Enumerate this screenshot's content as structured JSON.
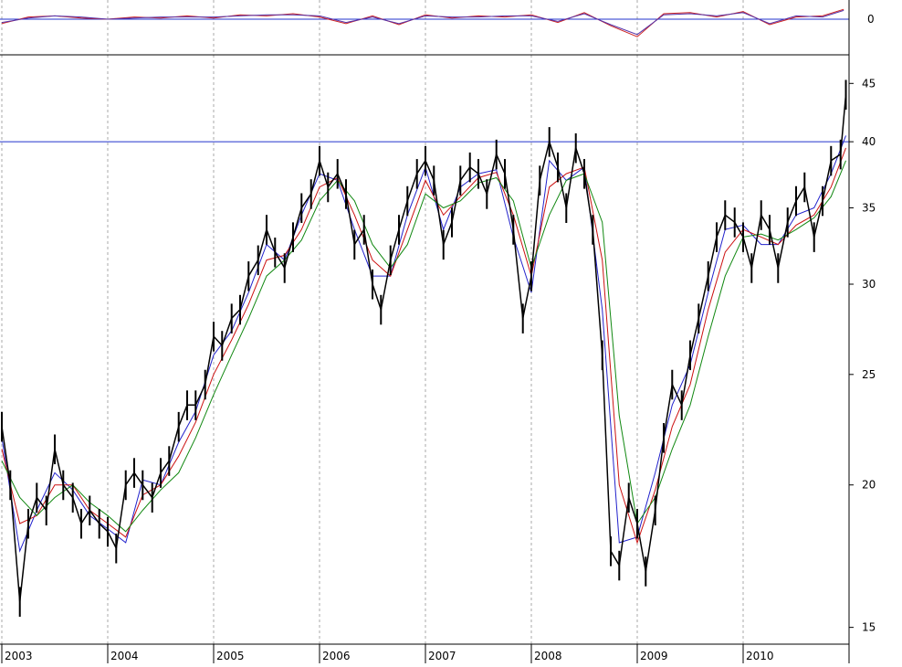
{
  "chart_data": [
    {
      "type": "line",
      "panel": "oscillator",
      "title": "",
      "ylabel": "",
      "y_ticks": [
        0
      ],
      "reference_line": 0,
      "series": [
        {
          "color": "#cc2222",
          "x": [
            2003.0,
            2003.25,
            2003.5,
            2003.75,
            2004.0,
            2004.25,
            2004.5,
            2004.75,
            2005.0,
            2005.25,
            2005.5,
            2005.75,
            2006.0,
            2006.25,
            2006.5,
            2006.75,
            2007.0,
            2007.25,
            2007.5,
            2007.75,
            2008.0,
            2008.25,
            2008.5,
            2008.75,
            2009.0,
            2009.25,
            2009.5,
            2009.75,
            2010.0,
            2010.25,
            2010.5,
            2010.75,
            2010.95
          ],
          "y": [
            -0.4,
            0.2,
            0.3,
            0.1,
            0.0,
            0.2,
            0.1,
            0.3,
            0.1,
            0.4,
            0.3,
            0.5,
            0.2,
            -0.4,
            0.3,
            -0.5,
            0.4,
            0.1,
            0.3,
            0.2,
            0.4,
            -0.3,
            0.6,
            -0.6,
            -1.6,
            0.5,
            0.6,
            0.2,
            0.7,
            -0.5,
            0.2,
            0.3,
            0.9
          ]
        },
        {
          "color": "#5533aa",
          "x": [
            2003.0,
            2003.25,
            2003.5,
            2003.75,
            2004.0,
            2004.25,
            2004.5,
            2004.75,
            2005.0,
            2005.25,
            2005.5,
            2005.75,
            2006.0,
            2006.25,
            2006.5,
            2006.75,
            2007.0,
            2007.25,
            2007.5,
            2007.75,
            2008.0,
            2008.25,
            2008.5,
            2008.75,
            2009.0,
            2009.25,
            2009.5,
            2009.75,
            2010.0,
            2010.25,
            2010.5,
            2010.75,
            2010.95
          ],
          "y": [
            -0.3,
            0.1,
            0.3,
            0.2,
            0.0,
            0.1,
            0.2,
            0.2,
            0.2,
            0.3,
            0.4,
            0.4,
            0.3,
            -0.3,
            0.2,
            -0.4,
            0.3,
            0.2,
            0.2,
            0.3,
            0.3,
            -0.2,
            0.5,
            -0.5,
            -1.4,
            0.4,
            0.5,
            0.3,
            0.6,
            -0.4,
            0.3,
            0.2,
            0.8
          ]
        }
      ]
    },
    {
      "type": "line",
      "panel": "price",
      "title": "",
      "xlabel": "",
      "ylabel": "",
      "x_tick_labels": [
        "2003",
        "2004",
        "2005",
        "2006",
        "2007",
        "2008",
        "2009",
        "2010"
      ],
      "y_tick_labels": [
        "15",
        "20",
        "25",
        "30",
        "35",
        "40",
        "45"
      ],
      "y_scale": "log",
      "ylim": [
        14.5,
        47.5
      ],
      "xlim": [
        2003.0,
        2011.0
      ],
      "grid": "vertical-dashed",
      "reference_line": 40,
      "price_series": {
        "color": "#000000",
        "x": [
          2003.0,
          2003.08,
          2003.17,
          2003.25,
          2003.33,
          2003.42,
          2003.5,
          2003.58,
          2003.67,
          2003.75,
          2003.83,
          2003.92,
          2004.0,
          2004.08,
          2004.17,
          2004.25,
          2004.33,
          2004.42,
          2004.5,
          2004.58,
          2004.67,
          2004.75,
          2004.83,
          2004.92,
          2005.0,
          2005.08,
          2005.17,
          2005.25,
          2005.33,
          2005.42,
          2005.5,
          2005.58,
          2005.67,
          2005.75,
          2005.83,
          2005.92,
          2006.0,
          2006.08,
          2006.17,
          2006.25,
          2006.33,
          2006.42,
          2006.5,
          2006.58,
          2006.67,
          2006.75,
          2006.83,
          2006.92,
          2007.0,
          2007.08,
          2007.17,
          2007.25,
          2007.33,
          2007.42,
          2007.5,
          2007.58,
          2007.67,
          2007.75,
          2007.83,
          2007.92,
          2008.0,
          2008.08,
          2008.17,
          2008.25,
          2008.33,
          2008.42,
          2008.5,
          2008.58,
          2008.67,
          2008.75,
          2008.83,
          2008.92,
          2009.0,
          2009.08,
          2009.17,
          2009.25,
          2009.33,
          2009.42,
          2009.5,
          2009.58,
          2009.67,
          2009.75,
          2009.83,
          2009.92,
          2010.0,
          2010.08,
          2010.17,
          2010.25,
          2010.33,
          2010.42,
          2010.5,
          2010.58,
          2010.67,
          2010.75,
          2010.83,
          2010.92,
          2010.97
        ],
        "y": [
          22.5,
          20.0,
          15.8,
          18.5,
          19.5,
          19.0,
          21.5,
          20.0,
          19.5,
          18.5,
          19.0,
          18.5,
          18.2,
          17.6,
          20.0,
          20.5,
          20.0,
          19.5,
          20.5,
          21.0,
          22.5,
          23.5,
          23.5,
          24.5,
          27.0,
          26.5,
          28.0,
          28.5,
          30.5,
          31.5,
          33.5,
          32.0,
          31.0,
          33.0,
          35.0,
          36.0,
          38.5,
          36.5,
          37.5,
          36.0,
          32.5,
          33.5,
          30.0,
          28.5,
          31.5,
          33.5,
          35.5,
          37.5,
          38.5,
          37.0,
          32.5,
          34.0,
          37.0,
          38.0,
          37.5,
          36.0,
          39.0,
          37.5,
          33.5,
          28.0,
          30.5,
          37.0,
          40.0,
          38.0,
          35.0,
          39.5,
          37.5,
          33.5,
          26.0,
          17.5,
          17.0,
          19.5,
          18.5,
          16.8,
          19.0,
          22.0,
          24.5,
          23.5,
          26.0,
          28.0,
          30.5,
          33.0,
          34.5,
          34.0,
          33.0,
          31.0,
          34.5,
          33.5,
          31.0,
          34.0,
          35.5,
          36.5,
          33.0,
          35.5,
          38.5,
          39.0,
          44.0
        ]
      },
      "moving_averages": [
        {
          "color": "#2222cc",
          "x": [
            2003.0,
            2003.17,
            2003.33,
            2003.5,
            2003.67,
            2003.83,
            2004.0,
            2004.17,
            2004.33,
            2004.5,
            2004.67,
            2004.83,
            2005.0,
            2005.17,
            2005.33,
            2005.5,
            2005.67,
            2005.83,
            2006.0,
            2006.17,
            2006.33,
            2006.5,
            2006.67,
            2006.83,
            2007.0,
            2007.17,
            2007.33,
            2007.5,
            2007.67,
            2007.83,
            2008.0,
            2008.17,
            2008.33,
            2008.5,
            2008.67,
            2008.83,
            2009.0,
            2009.17,
            2009.33,
            2009.5,
            2009.67,
            2009.83,
            2010.0,
            2010.17,
            2010.33,
            2010.5,
            2010.67,
            2010.83,
            2010.97
          ],
          "y": [
            22.0,
            17.5,
            19.0,
            20.5,
            19.8,
            18.8,
            18.3,
            17.8,
            20.2,
            20.0,
            21.8,
            23.2,
            26.0,
            27.3,
            29.5,
            32.5,
            31.5,
            34.5,
            37.5,
            37.0,
            33.5,
            30.5,
            30.5,
            34.5,
            38.0,
            33.5,
            36.5,
            37.5,
            37.8,
            33.0,
            29.5,
            38.5,
            37.0,
            38.0,
            28.5,
            17.8,
            18.0,
            20.5,
            23.5,
            25.5,
            29.5,
            33.5,
            33.8,
            32.5,
            32.5,
            34.5,
            35.0,
            37.5,
            40.5
          ]
        },
        {
          "color": "#cc1111",
          "x": [
            2003.0,
            2003.17,
            2003.33,
            2003.5,
            2003.67,
            2003.83,
            2004.0,
            2004.17,
            2004.33,
            2004.5,
            2004.67,
            2004.83,
            2005.0,
            2005.17,
            2005.33,
            2005.5,
            2005.67,
            2005.83,
            2006.0,
            2006.17,
            2006.33,
            2006.5,
            2006.67,
            2006.83,
            2007.0,
            2007.17,
            2007.33,
            2007.5,
            2007.67,
            2007.83,
            2008.0,
            2008.17,
            2008.33,
            2008.5,
            2008.67,
            2008.83,
            2009.0,
            2009.17,
            2009.33,
            2009.5,
            2009.67,
            2009.83,
            2010.0,
            2010.17,
            2010.33,
            2010.5,
            2010.67,
            2010.83,
            2010.97
          ],
          "y": [
            21.5,
            18.5,
            18.8,
            20.0,
            20.0,
            19.0,
            18.5,
            18.0,
            19.6,
            20.0,
            21.2,
            22.7,
            25.0,
            26.8,
            28.8,
            31.5,
            31.8,
            33.5,
            36.5,
            37.2,
            34.5,
            31.5,
            30.5,
            33.5,
            37.0,
            34.5,
            35.8,
            37.2,
            37.6,
            34.5,
            30.5,
            36.5,
            37.5,
            38.0,
            31.5,
            20.0,
            17.8,
            19.8,
            22.5,
            24.5,
            28.5,
            32.0,
            33.5,
            33.0,
            32.5,
            33.8,
            34.5,
            36.5,
            39.5
          ]
        },
        {
          "color": "#118811",
          "x": [
            2003.0,
            2003.17,
            2003.33,
            2003.5,
            2003.67,
            2003.83,
            2004.0,
            2004.17,
            2004.33,
            2004.5,
            2004.67,
            2004.83,
            2005.0,
            2005.17,
            2005.33,
            2005.5,
            2005.67,
            2005.83,
            2006.0,
            2006.17,
            2006.33,
            2006.5,
            2006.67,
            2006.83,
            2007.0,
            2007.17,
            2007.33,
            2007.5,
            2007.67,
            2007.83,
            2008.0,
            2008.17,
            2008.33,
            2008.5,
            2008.67,
            2008.83,
            2009.0,
            2009.17,
            2009.33,
            2009.5,
            2009.67,
            2009.83,
            2010.0,
            2010.17,
            2010.33,
            2010.5,
            2010.67,
            2010.83,
            2010.97
          ],
          "y": [
            21.0,
            19.5,
            18.8,
            19.5,
            20.0,
            19.3,
            18.8,
            18.2,
            19.0,
            19.8,
            20.5,
            22.0,
            24.0,
            26.0,
            28.0,
            30.5,
            31.5,
            32.8,
            35.5,
            37.0,
            35.5,
            32.5,
            31.0,
            32.5,
            36.0,
            35.0,
            35.5,
            36.8,
            37.2,
            35.5,
            31.0,
            34.5,
            37.0,
            37.5,
            34.0,
            23.0,
            18.5,
            19.5,
            21.5,
            23.5,
            27.0,
            30.5,
            33.0,
            33.2,
            32.8,
            33.5,
            34.3,
            35.8,
            38.5
          ]
        }
      ]
    }
  ]
}
